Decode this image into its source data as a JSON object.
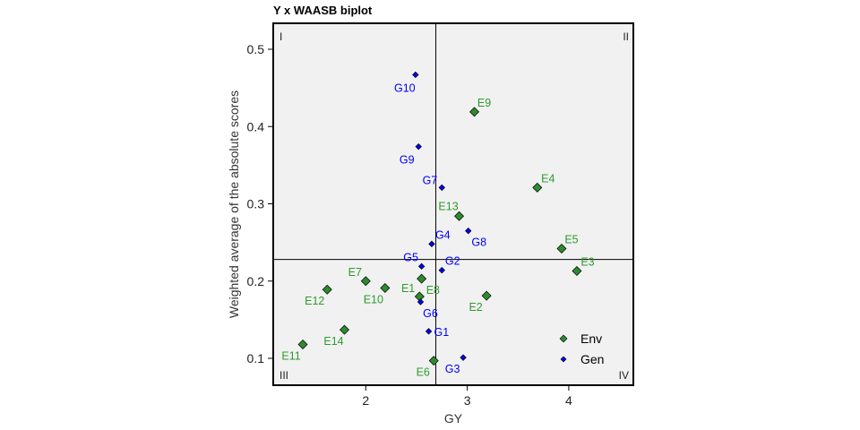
{
  "chart_data": {
    "type": "scatter",
    "title": "Y x WAASB biplot",
    "xlabel": "GY",
    "ylabel": "Weighted average of the absolute scores",
    "xlim": [
      1.09,
      4.65
    ],
    "ylim": [
      0.065,
      0.538
    ],
    "xticks": [
      2,
      3,
      4
    ],
    "yticks": [
      0.1,
      0.2,
      0.3,
      0.4,
      0.5
    ],
    "xtick_labels": [
      "2",
      "3",
      "4"
    ],
    "ytick_labels": [
      "0.1",
      "0.2",
      "0.3",
      "0.4",
      "0.5"
    ],
    "reference_lines": {
      "x": 2.69,
      "y": 0.228
    },
    "quadrant_labels": [
      "I",
      "II",
      "III",
      "IV"
    ],
    "grid": false,
    "legend": {
      "position": "bottom-right",
      "entries": [
        "Env",
        "Gen"
      ]
    },
    "colors": {
      "Env": "#2e8b2e",
      "Gen": "#0000ff",
      "Env_label": "#2e9b2e",
      "Gen_label": "#0000ff",
      "panel": "#f1f1f1"
    },
    "series": [
      {
        "name": "Env",
        "marker": "diamond",
        "points": [
          {
            "label": "E9",
            "x": 3.07,
            "y": 0.419
          },
          {
            "label": "E4",
            "x": 3.69,
            "y": 0.321
          },
          {
            "label": "E13",
            "x": 2.92,
            "y": 0.284
          },
          {
            "label": "E5",
            "x": 3.93,
            "y": 0.242
          },
          {
            "label": "E3",
            "x": 4.08,
            "y": 0.213
          },
          {
            "label": "E7",
            "x": 2.0,
            "y": 0.2
          },
          {
            "label": "E12",
            "x": 1.62,
            "y": 0.189
          },
          {
            "label": "E10",
            "x": 2.19,
            "y": 0.191
          },
          {
            "label": "E1",
            "x": 2.55,
            "y": 0.203
          },
          {
            "label": "E8",
            "x": 2.53,
            "y": 0.18
          },
          {
            "label": "E2",
            "x": 3.19,
            "y": 0.181
          },
          {
            "label": "E14",
            "x": 1.79,
            "y": 0.137
          },
          {
            "label": "E11",
            "x": 1.38,
            "y": 0.118
          },
          {
            "label": "E6",
            "x": 2.67,
            "y": 0.097
          }
        ]
      },
      {
        "name": "Gen",
        "marker": "diamond-small",
        "points": [
          {
            "label": "G10",
            "x": 2.49,
            "y": 0.467
          },
          {
            "label": "G9",
            "x": 2.52,
            "y": 0.374
          },
          {
            "label": "G7",
            "x": 2.75,
            "y": 0.321
          },
          {
            "label": "G4",
            "x": 2.65,
            "y": 0.248
          },
          {
            "label": "G8",
            "x": 3.01,
            "y": 0.265
          },
          {
            "label": "G5",
            "x": 2.55,
            "y": 0.219
          },
          {
            "label": "G2",
            "x": 2.75,
            "y": 0.214
          },
          {
            "label": "G6",
            "x": 2.54,
            "y": 0.173
          },
          {
            "label": "G1",
            "x": 2.62,
            "y": 0.135
          },
          {
            "label": "G3",
            "x": 2.96,
            "y": 0.101
          }
        ]
      }
    ]
  }
}
